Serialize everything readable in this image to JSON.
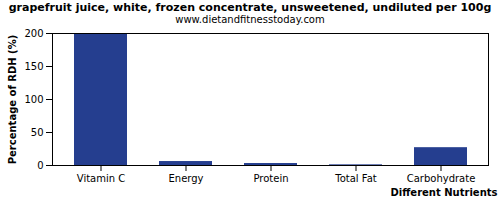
{
  "chart_data": {
    "type": "bar",
    "title": "grapefruit juice, white, frozen concentrate, unsweetened, undiluted per 100g",
    "subtitle": "www.dietandfitnesstoday.com",
    "x_label": "Different Nutrients",
    "y_label": "Percentage of RDH (%)",
    "categories": [
      "Vitamin C",
      "Energy",
      "Protein",
      "Total Fat",
      "Carbohydrate"
    ],
    "values": [
      199,
      6,
      3,
      1,
      27
    ],
    "color": "#253e8f",
    "ylim": [
      0,
      200
    ],
    "yticks": [
      0,
      50,
      100,
      150,
      200
    ],
    "grid": false
  }
}
